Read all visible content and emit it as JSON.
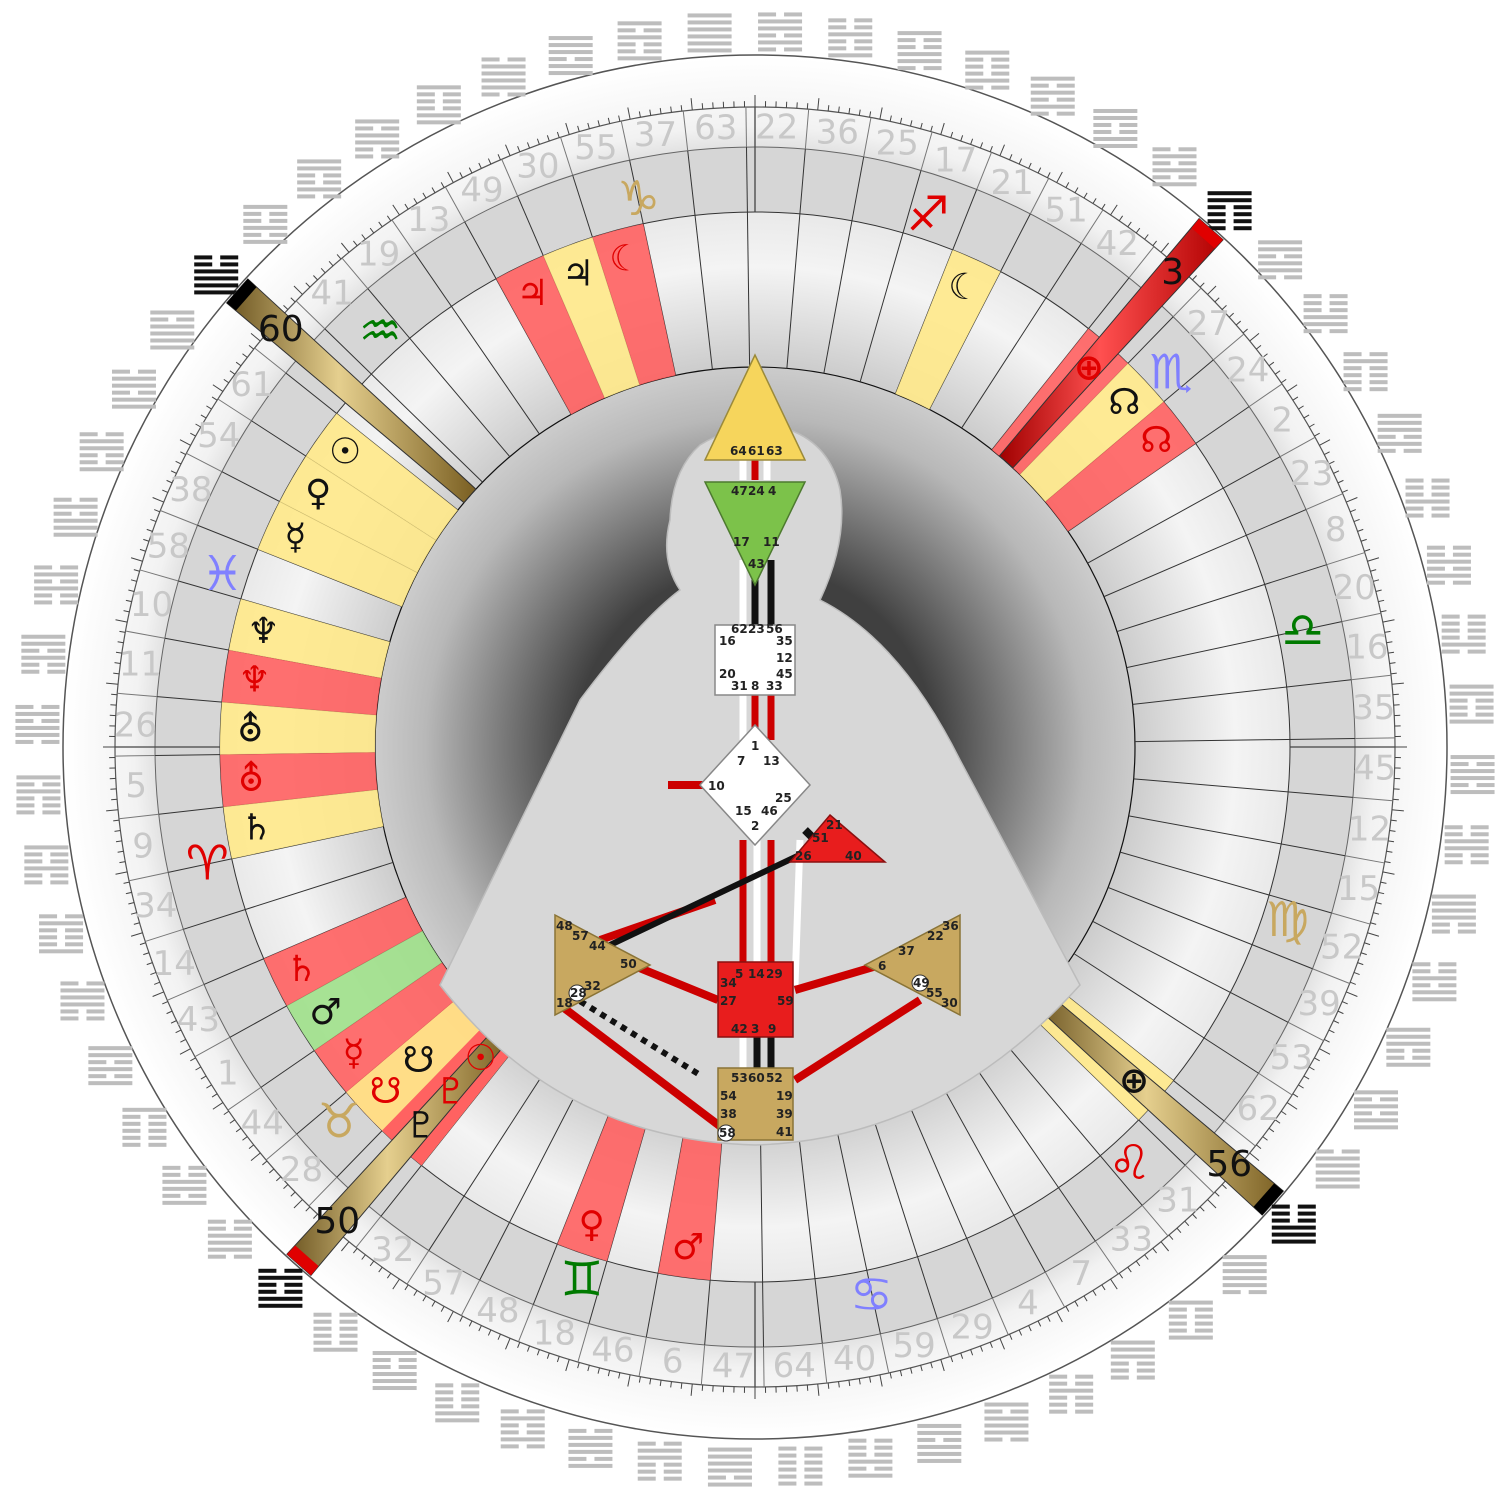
{
  "gate_ring": [
    41,
    19,
    13,
    49,
    30,
    55,
    37,
    63,
    22,
    36,
    25,
    17,
    21,
    51,
    42,
    3,
    27,
    24,
    2,
    23,
    8,
    20,
    16,
    35,
    45,
    12,
    15,
    52,
    39,
    53,
    62,
    56,
    31,
    33,
    7,
    4,
    29,
    59,
    40,
    64,
    47,
    6,
    46,
    18,
    48,
    57,
    32,
    50,
    28,
    44,
    1,
    43,
    14,
    34,
    9,
    5,
    26,
    11,
    10,
    58,
    38,
    54,
    61,
    60
  ],
  "highlighted_gates": [
    {
      "gate": "60",
      "band": "#000000"
    },
    {
      "gate": "50",
      "band": "#e00000"
    },
    {
      "gate": "56",
      "band": "#000000"
    },
    {
      "gate": "3",
      "band": "#e00000",
      "fill": "red"
    }
  ],
  "colors": {
    "design": "#ff4040",
    "personality": "#111111",
    "activation_red": "#ff6060",
    "activation_yellow": "#ffe98a",
    "activation_tan": "#e6cf9a",
    "activation_green": "#9fe08a",
    "gold": "#b8953e",
    "center_tan": "#c8a860",
    "center_red": "#e81d1d",
    "center_yellow": "#f6d55c",
    "center_green": "#7cc24a"
  },
  "activation_glyphs": [
    {
      "gate": "61",
      "glyph": "☉",
      "color": "#111111",
      "icon": "sun-icon"
    },
    {
      "gate": "54",
      "glyph": "♀",
      "color": "#111111",
      "icon": "venus-icon"
    },
    {
      "gate": "38",
      "glyph": "☿",
      "color": "#111111",
      "icon": "mercury-icon"
    },
    {
      "gate": "10",
      "glyph": "♆",
      "color": "#111111",
      "icon": "neptune-icon"
    },
    {
      "gate": "11",
      "glyph": "♆",
      "color": "#e00000",
      "icon": "neptune-icon"
    },
    {
      "gate": "26",
      "glyph": "⛢",
      "color": "#111111",
      "icon": "uranus-icon"
    },
    {
      "gate": "5",
      "glyph": "⛢",
      "color": "#e00000",
      "icon": "uranus-icon"
    },
    {
      "gate": "9",
      "glyph": "♄",
      "color": "#111111",
      "icon": "saturn-icon"
    },
    {
      "gate": "43",
      "glyph": "♄",
      "color": "#e00000",
      "icon": "saturn-icon"
    },
    {
      "gate": "1",
      "glyph": "♂",
      "color": "#111111",
      "icon": "mars-icon"
    },
    {
      "gate": "44",
      "glyph": "☿",
      "color": "#e00000",
      "icon": "mercury-icon"
    },
    {
      "gate": "28",
      "glyph": "☋",
      "color": "#e00000",
      "icon": "south-node-icon"
    },
    {
      "gate": "28",
      "glyph": "☋",
      "color": "#111111",
      "icon": "south-node-icon"
    },
    {
      "gate": "50",
      "glyph": "♇",
      "color": "#111111",
      "icon": "pluto-icon"
    },
    {
      "gate": "50",
      "glyph": "♇",
      "color": "#e00000",
      "icon": "pluto-icon"
    },
    {
      "gate": "50",
      "glyph": "☉",
      "color": "#e00000",
      "icon": "sun-icon"
    },
    {
      "gate": "18",
      "glyph": "♀",
      "color": "#e00000",
      "icon": "venus-icon"
    },
    {
      "gate": "6",
      "glyph": "♂",
      "color": "#e00000",
      "icon": "mars-icon"
    },
    {
      "gate": "56",
      "glyph": "⊕",
      "color": "#111111",
      "icon": "earth-icon"
    },
    {
      "gate": "3",
      "glyph": "⊕",
      "color": "#e00000",
      "icon": "earth-icon"
    },
    {
      "gate": "27",
      "glyph": "☊",
      "color": "#111111",
      "icon": "north-node-icon"
    },
    {
      "gate": "24",
      "glyph": "☊",
      "color": "#e00000",
      "icon": "north-node-icon"
    },
    {
      "gate": "21",
      "glyph": "☾",
      "color": "#111111",
      "icon": "moon-icon"
    },
    {
      "gate": "55",
      "glyph": "☾",
      "color": "#e00000",
      "icon": "moon-icon"
    },
    {
      "gate": "49",
      "glyph": "♃",
      "color": "#e00000",
      "icon": "jupiter-icon"
    },
    {
      "gate": "30",
      "glyph": "♃",
      "color": "#111111",
      "icon": "jupiter-icon"
    }
  ],
  "zodiac": [
    {
      "glyph": "♑",
      "color": "#c8a860",
      "icon": "capricorn-icon"
    },
    {
      "glyph": "♐",
      "color": "#e00000",
      "icon": "sagittarius-icon"
    },
    {
      "glyph": "♏",
      "color": "#8080ff",
      "icon": "scorpio-icon"
    },
    {
      "glyph": "♎",
      "color": "#007a00",
      "icon": "libra-icon"
    },
    {
      "glyph": "♍",
      "color": "#c8a860",
      "icon": "virgo-icon"
    },
    {
      "glyph": "♌",
      "color": "#e00000",
      "icon": "leo-icon"
    },
    {
      "glyph": "♋",
      "color": "#8080ff",
      "icon": "cancer-icon"
    },
    {
      "glyph": "♊",
      "color": "#007a00",
      "icon": "gemini-icon"
    },
    {
      "glyph": "♉",
      "color": "#c8a860",
      "icon": "taurus-icon"
    },
    {
      "glyph": "♈",
      "color": "#e00000",
      "icon": "aries-icon"
    },
    {
      "glyph": "♓",
      "color": "#8080ff",
      "icon": "pisces-icon"
    },
    {
      "glyph": "♒",
      "color": "#007a00",
      "icon": "aquarius-icon"
    }
  ],
  "bodygraph": {
    "head_gates": [
      "64",
      "61",
      "63"
    ],
    "ajna_gates": [
      "47",
      "24",
      "4",
      "17",
      "11",
      "43"
    ],
    "throat_gates": [
      "62",
      "23",
      "56",
      "16",
      "35",
      "12",
      "20",
      "31",
      "8",
      "33",
      "45"
    ],
    "g_gates": [
      "1",
      "7",
      "13",
      "10",
      "25",
      "15",
      "46",
      "2"
    ],
    "ego_gates": [
      "21",
      "51",
      "26",
      "40"
    ],
    "spleen_gates": [
      "48",
      "57",
      "44",
      "50",
      "32",
      "28",
      "18"
    ],
    "sp_gates": [
      "36",
      "22",
      "37",
      "6",
      "49",
      "55",
      "30"
    ],
    "sacral_gates": [
      "5",
      "14",
      "29",
      "34",
      "27",
      "59",
      "42",
      "3",
      "9"
    ],
    "root_gates": [
      "53",
      "60",
      "52",
      "54",
      "19",
      "38",
      "39",
      "58",
      "41"
    ]
  }
}
